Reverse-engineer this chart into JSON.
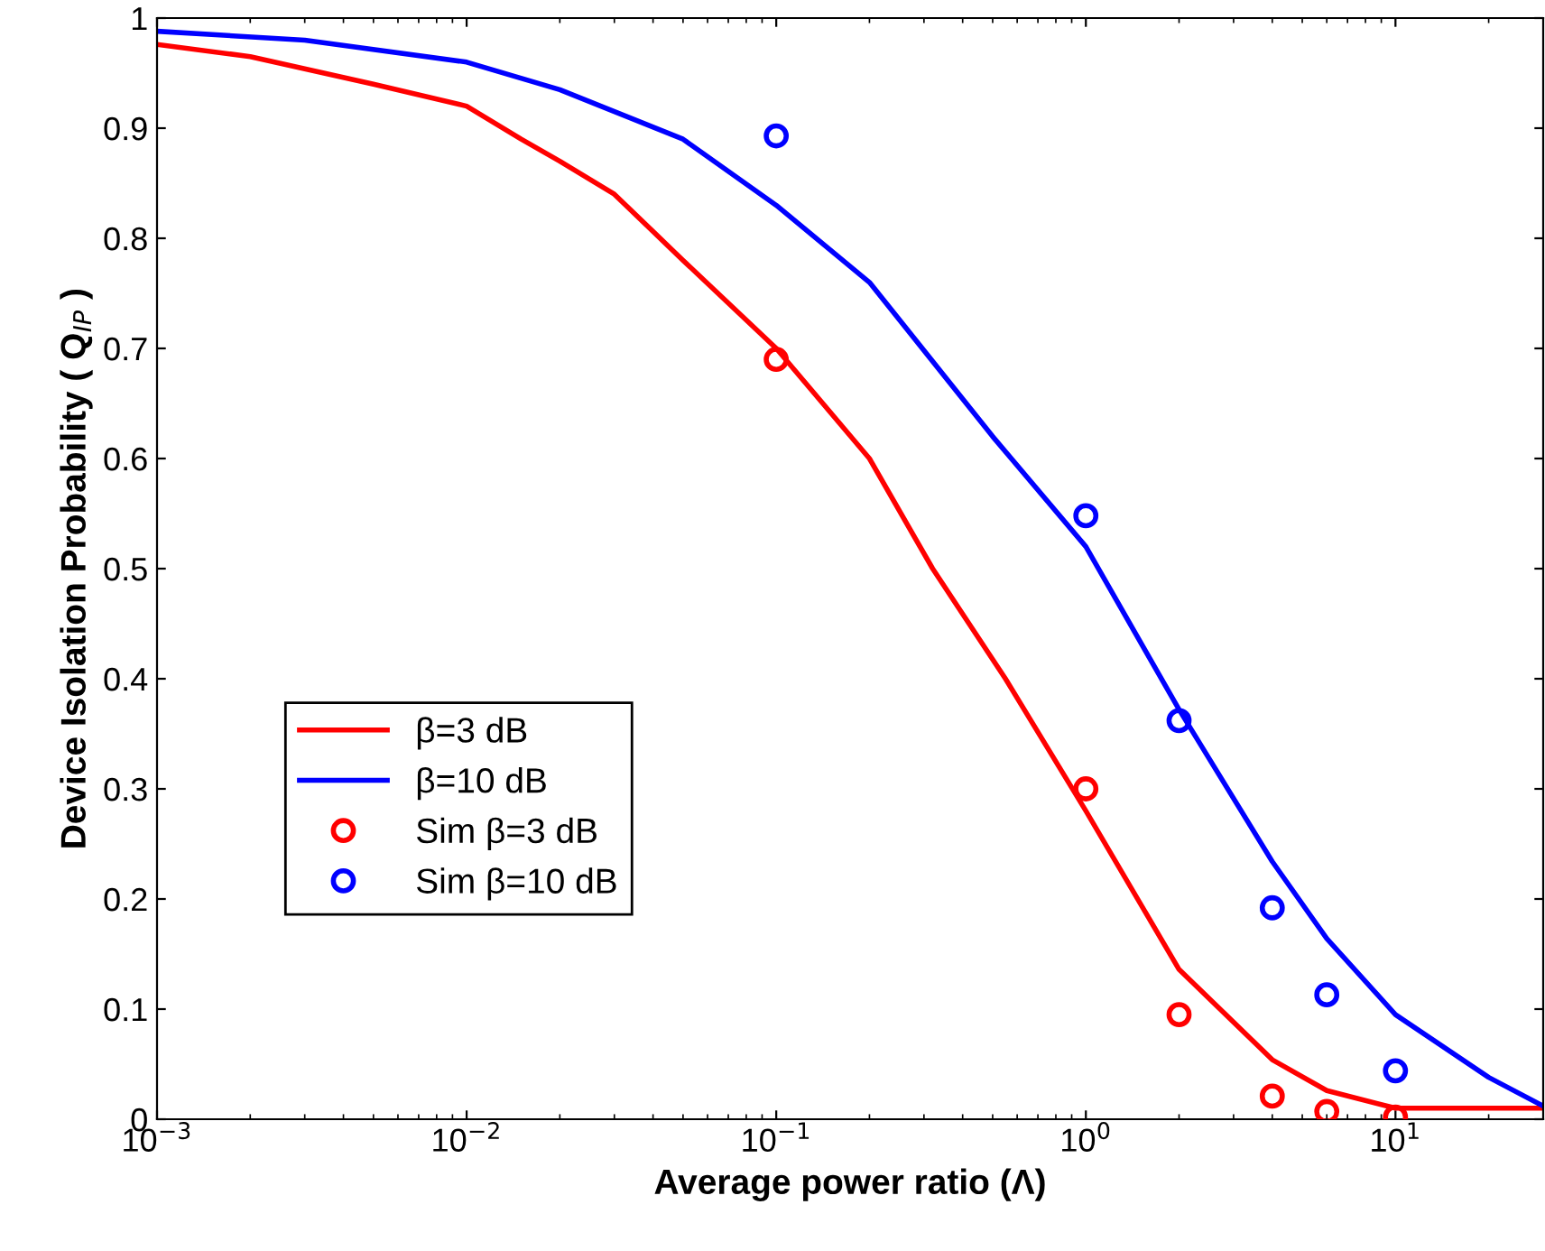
{
  "chart_data": {
    "type": "line",
    "xlabel": "Average power ratio (Λ)",
    "ylabel": "Device Isolation Probability ( Q$_{IP}$ )",
    "log": "x",
    "xlim": [
      0.001,
      30
    ],
    "xticks": [
      {
        "value": 0.001,
        "label": "10$^{−3}$"
      },
      {
        "value": 0.01,
        "label": "10$^{−2}$"
      },
      {
        "value": 0.1,
        "label": "10$^{−1}$"
      },
      {
        "value": 1,
        "label": "10$^{0}$"
      },
      {
        "value": 10,
        "label": "10$^{1}$"
      }
    ],
    "ylim": [
      0,
      1
    ],
    "yticks": [
      0,
      0.1,
      0.2,
      0.3,
      0.4,
      0.5,
      0.6,
      0.7,
      0.8,
      0.9,
      1
    ],
    "grid": false,
    "legend": "bottom left",
    "series": [
      {
        "name": "β=3 dB",
        "color": "#ff0000",
        "marker": "none",
        "line_style": "solid",
        "x": [
          0.001,
          0.002,
          0.005,
          0.01,
          0.015,
          0.02,
          0.03,
          0.05,
          0.1,
          0.2,
          0.32,
          0.55,
          1,
          2,
          4,
          6,
          10,
          30
        ],
        "values": [
          0.976,
          0.965,
          0.94,
          0.92,
          0.89,
          0.87,
          0.84,
          0.78,
          0.7,
          0.6,
          0.5,
          0.4,
          0.28,
          0.136,
          0.054,
          0.026,
          0.01,
          0.01
        ]
      },
      {
        "name": "β=10 dB",
        "color": "#0000ff",
        "marker": "none",
        "line_style": "solid",
        "x": [
          0.001,
          0.003,
          0.01,
          0.02,
          0.05,
          0.1,
          0.2,
          0.5,
          1,
          2,
          4,
          6,
          10,
          20,
          30
        ],
        "values": [
          0.988,
          0.98,
          0.96,
          0.935,
          0.89,
          0.83,
          0.76,
          0.62,
          0.52,
          0.372,
          0.234,
          0.164,
          0.095,
          0.038,
          0.012
        ]
      },
      {
        "name": "Sim β=3 dB",
        "type": "scatter",
        "color": "#ff0000",
        "marker": "circle",
        "x": [
          0.1,
          1,
          2,
          4,
          6,
          10
        ],
        "values": [
          0.69,
          0.3,
          0.095,
          0.021,
          0.007,
          0.002
        ]
      },
      {
        "name": "Sim β=10 dB",
        "type": "scatter",
        "color": "#0000ff",
        "marker": "circle",
        "x": [
          0.1,
          1,
          2,
          4,
          6,
          10
        ],
        "values": [
          0.893,
          0.548,
          0.362,
          0.192,
          0.113,
          0.044
        ]
      }
    ]
  }
}
